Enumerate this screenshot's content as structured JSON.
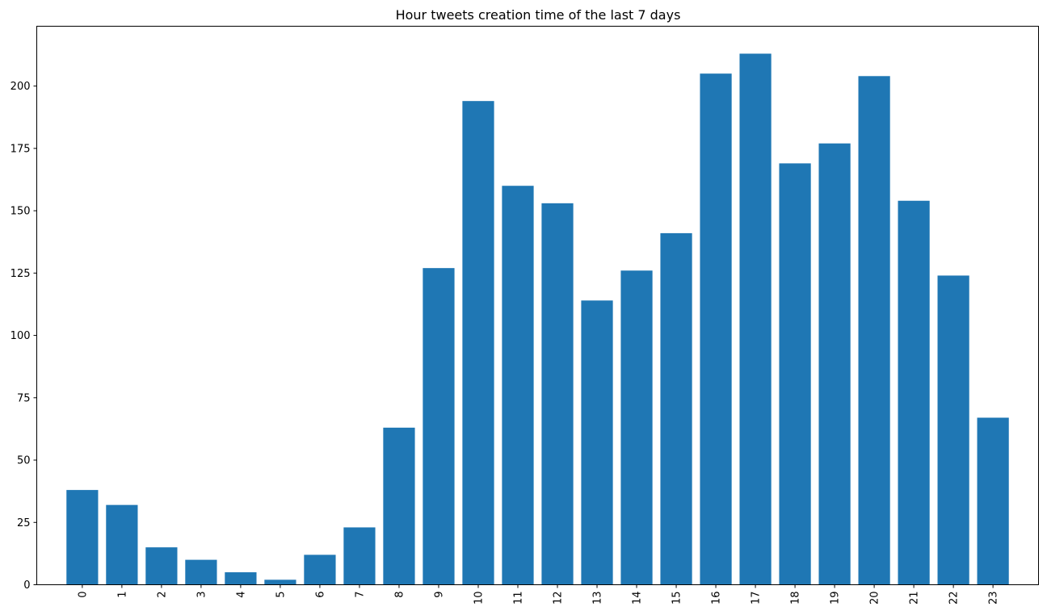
{
  "chart_data": {
    "type": "bar",
    "title": "Hour tweets creation time of the last 7 days",
    "xlabel": "",
    "ylabel": "",
    "categories": [
      "0",
      "1",
      "2",
      "3",
      "4",
      "5",
      "6",
      "7",
      "8",
      "9",
      "10",
      "11",
      "12",
      "13",
      "14",
      "15",
      "16",
      "17",
      "18",
      "19",
      "20",
      "21",
      "22",
      "23"
    ],
    "values": [
      38,
      32,
      15,
      10,
      5,
      2,
      12,
      23,
      63,
      127,
      194,
      160,
      153,
      114,
      126,
      141,
      205,
      213,
      169,
      177,
      204,
      154,
      124,
      67
    ],
    "ylim": [
      0,
      224
    ],
    "yticks": [
      0,
      25,
      50,
      75,
      100,
      125,
      150,
      175,
      200
    ],
    "x_tick_rotation": "vertical",
    "bar_color": "#1f77b4",
    "grid": false,
    "legend": "none"
  }
}
